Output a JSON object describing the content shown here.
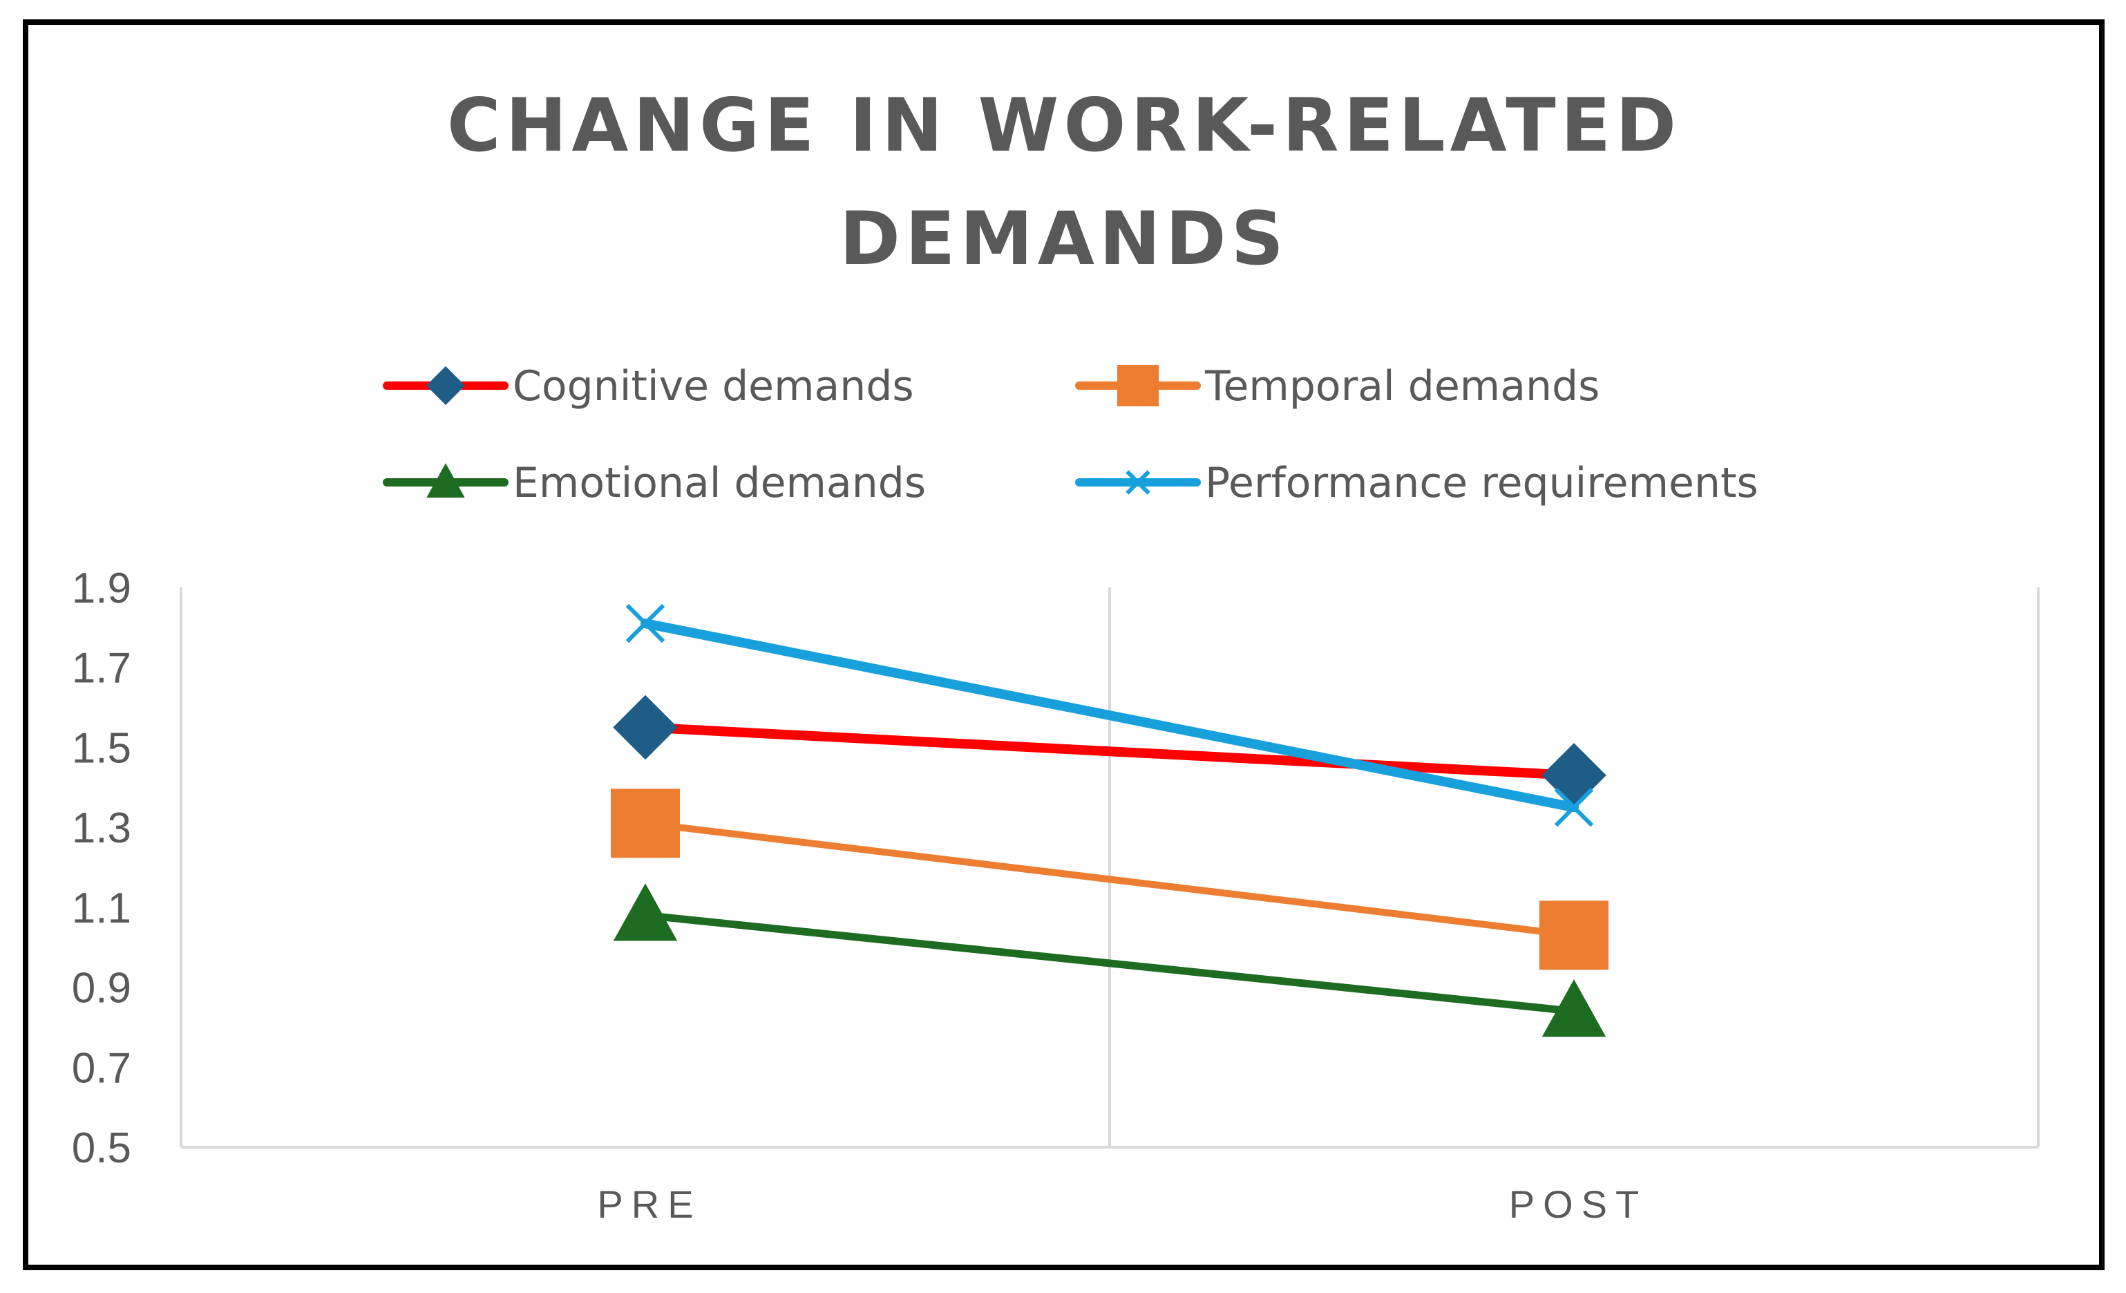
{
  "chart_data": {
    "type": "line",
    "title": [
      "CHANGE IN WORK-RELATED",
      "DEMANDS"
    ],
    "xlabel": "",
    "ylabel": "",
    "categories": [
      "PRE",
      "POST"
    ],
    "ylim": [
      0.5,
      1.9
    ],
    "yticks": [
      0.5,
      0.7,
      0.9,
      1.1,
      1.3,
      1.5,
      1.7,
      1.9
    ],
    "ytick_labels": [
      "0.5",
      "0.7",
      "0.9",
      "1.1",
      "1.3",
      "1.5",
      "1.7",
      "1.9"
    ],
    "grid": "vertical",
    "legend_position": "top",
    "series": [
      {
        "name": "Cognitive demands",
        "values": [
          1.55,
          1.43
        ],
        "color": "#FF0000",
        "marker": "diamond",
        "marker_color": "#1F5C86"
      },
      {
        "name": "Temporal demands",
        "values": [
          1.31,
          1.03
        ],
        "color": "#ED7D31",
        "marker": "square",
        "marker_color": "#ED7D31"
      },
      {
        "name": "Emotional demands",
        "values": [
          1.08,
          0.84
        ],
        "color": "#1E6B22",
        "marker": "triangle",
        "marker_color": "#1E6B22"
      },
      {
        "name": "Performance requirements",
        "values": [
          1.81,
          1.35
        ],
        "color": "#18A0DC",
        "marker": "x",
        "marker_color": "#18A0DC"
      }
    ]
  }
}
